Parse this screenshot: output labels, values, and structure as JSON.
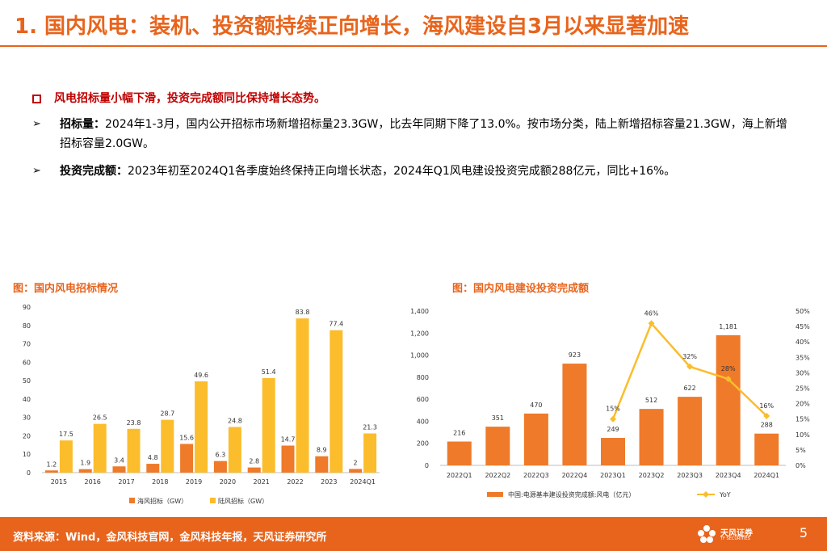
{
  "title": "1. 国内风电：装机、投资额持续正向增长，海风建设自3月以来显著加速",
  "headline": "风电招标量小幅下滑，投资完成额同比保持增长态势。",
  "bullets": [
    {
      "label": "招标量：",
      "text": "2024年1-3月，国内公开招标市场新增招标量23.3GW，比去年同期下降了13.0%。按市场分类，陆上新增招标容量21.3GW，海上新增招标容量2.0GW。"
    },
    {
      "label": "投资完成额：",
      "text": "2023年初至2024Q1各季度始终保持正向增长状态，2024年Q1风电建设投资完成额288亿元，同比+16%。"
    }
  ],
  "chart1_caption": "图：国内风电招标情况",
  "chart2_caption": "图：国内风电建设投资完成额",
  "chart_data": [
    {
      "type": "bar",
      "categories": [
        "2015",
        "2016",
        "2017",
        "2018",
        "2019",
        "2020",
        "2021",
        "2022",
        "2023",
        "2024Q1"
      ],
      "series": [
        {
          "name": "海风招标（GW）",
          "color": "#ee7a2a",
          "values": [
            1.2,
            1.9,
            3.4,
            4.8,
            15.6,
            6.3,
            2.8,
            14.7,
            8.9,
            2
          ]
        },
        {
          "name": "陆风招标（GW）",
          "color": "#fbbd2c",
          "values": [
            17.5,
            26.5,
            23.8,
            28.7,
            49.6,
            24.8,
            51.4,
            83.8,
            77.4,
            21.3
          ]
        }
      ],
      "yticks": [
        "0",
        "10",
        "20",
        "30",
        "40",
        "50",
        "60",
        "70",
        "80",
        "90"
      ],
      "ylim": [
        0,
        90
      ],
      "legend_position": "bottom"
    },
    {
      "type": "bar+line",
      "categories": [
        "2022Q1",
        "2022Q2",
        "2022Q3",
        "2022Q4",
        "2023Q1",
        "2023Q2",
        "2023Q3",
        "2023Q4",
        "2024Q1"
      ],
      "bar_series": {
        "name": "中国:电源基本建设投资完成额:风电（亿元）",
        "color": "#ee7a2a",
        "values": [
          216,
          351,
          470,
          923,
          249,
          512,
          622,
          1181,
          288
        ],
        "labels": [
          "216",
          "351",
          "470",
          "923",
          "249",
          "512",
          "622",
          "1,181",
          "288"
        ]
      },
      "line_series": {
        "name": "YoY",
        "color": "#fbbd2c",
        "start_index": 4,
        "values": [
          15,
          46,
          32,
          28,
          16
        ],
        "labels": [
          "15%",
          "46%",
          "32%",
          "28%",
          "16%"
        ]
      },
      "yticks_left": [
        "0",
        "200",
        "400",
        "600",
        "800",
        "1,000",
        "1,200",
        "1,400"
      ],
      "ylim_left": [
        0,
        1400
      ],
      "yticks_right": [
        "0%",
        "5%",
        "10%",
        "15%",
        "20%",
        "25%",
        "30%",
        "35%",
        "40%",
        "45%",
        "50%"
      ],
      "ylim_right": [
        0,
        50
      ],
      "legend_position": "bottom"
    }
  ],
  "footer": {
    "source": "资料来源：Wind，金风科技官网，金风科技年报，天风证券研究所",
    "logo_name": "天风证券",
    "logo_en": "TF SECURITIES",
    "page_number": "5"
  }
}
